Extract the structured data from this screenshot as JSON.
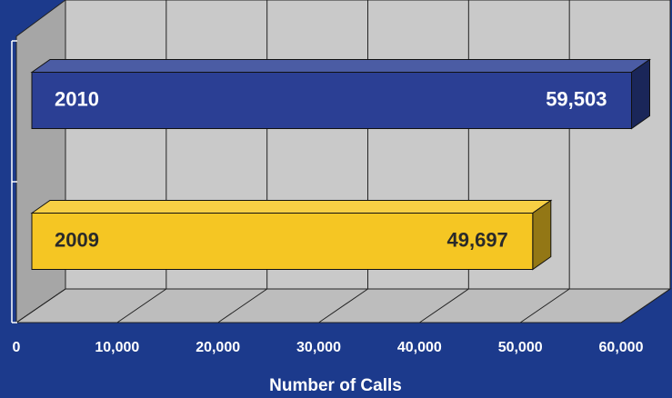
{
  "chart_data": {
    "type": "bar",
    "orientation": "horizontal",
    "x_label": "Number of Calls",
    "categories": [
      "2010",
      "2009"
    ],
    "values": [
      59503,
      49697
    ],
    "value_labels": [
      "59,503",
      "49,697"
    ],
    "colors": [
      "#2b3f94",
      "#f5c623"
    ],
    "xlim": [
      0,
      60000
    ],
    "xticks": [
      0,
      {
        "value": 10000,
        "label": "10,000"
      },
      {
        "value": 20000,
        "label": "20,000"
      },
      {
        "value": 30000,
        "label": "30,000"
      },
      {
        "value": 40000,
        "label": "40,000"
      },
      {
        "value": 50000,
        "label": "50,000"
      },
      {
        "value": 60000,
        "label": "60,000"
      }
    ],
    "grid": true
  }
}
